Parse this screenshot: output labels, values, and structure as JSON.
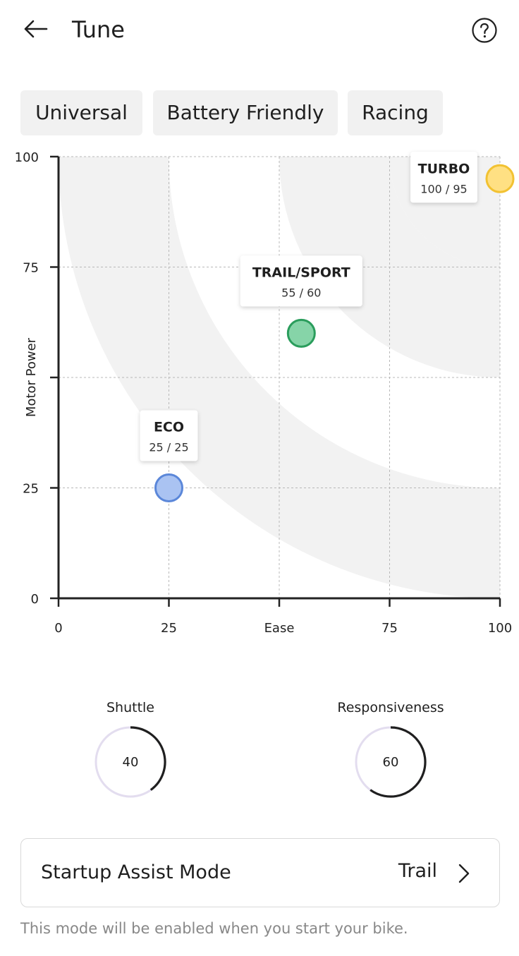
{
  "header": {
    "title": "Tune",
    "back_icon": "arrow-left-icon",
    "help_icon": "question-circle-icon"
  },
  "presets": [
    {
      "label": "Universal"
    },
    {
      "label": "Battery Friendly"
    },
    {
      "label": "Racing"
    }
  ],
  "chart_data": {
    "type": "scatter",
    "xlabel": "Ease",
    "ylabel": "Motor Power",
    "xlim": [
      0,
      100
    ],
    "ylim": [
      0,
      100
    ],
    "x_ticks": [
      "0",
      "25",
      "Ease",
      "75",
      "100"
    ],
    "y_ticks": [
      "0",
      "25",
      "",
      "75",
      "100"
    ],
    "grid": true,
    "points": [
      {
        "name": "ECO",
        "x": 25,
        "y": 25,
        "value_label": "25 / 25",
        "fill": "#aac3f2",
        "stroke": "#5b87d9"
      },
      {
        "name": "TRAIL/SPORT",
        "x": 55,
        "y": 60,
        "value_label": "55 / 60",
        "fill": "#86d4a8",
        "stroke": "#2a9d5c"
      },
      {
        "name": "TURBO",
        "x": 100,
        "y": 95,
        "value_label": "100 / 95",
        "fill": "#ffe083",
        "stroke": "#f2c232"
      }
    ]
  },
  "dials": [
    {
      "label": "Shuttle",
      "value": 40
    },
    {
      "label": "Responsiveness",
      "value": 60
    }
  ],
  "startup": {
    "label": "Startup Assist Mode",
    "value": "Trail",
    "note": "This mode will be enabled when you start your bike."
  },
  "colors": {
    "band": "#f2f2f2",
    "axis": "#222222",
    "dial_track": "#e3ddef",
    "dial_arc": "#1f1f1f"
  }
}
